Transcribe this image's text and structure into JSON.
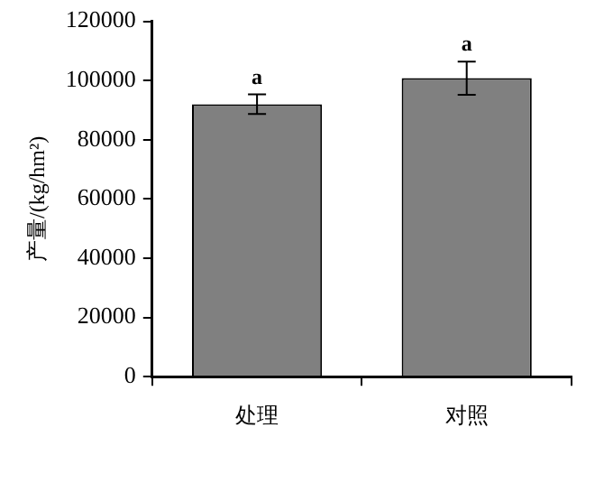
{
  "chart_data": {
    "type": "bar",
    "ylabel": "产量/(kg/hm²)",
    "categories": [
      "处理",
      "对照"
    ],
    "values": [
      92000,
      100800
    ],
    "errors": [
      3300,
      5600
    ],
    "color": "#808080",
    "ylim": [
      0,
      120000
    ],
    "yticks": [
      0,
      20000,
      40000,
      60000,
      80000,
      100000,
      120000
    ],
    "grid": false,
    "legend": false,
    "annotations": [
      {
        "text": "a",
        "x": "处理",
        "y": 97000
      },
      {
        "text": "a",
        "x": "对照",
        "y": 108500
      }
    ]
  }
}
